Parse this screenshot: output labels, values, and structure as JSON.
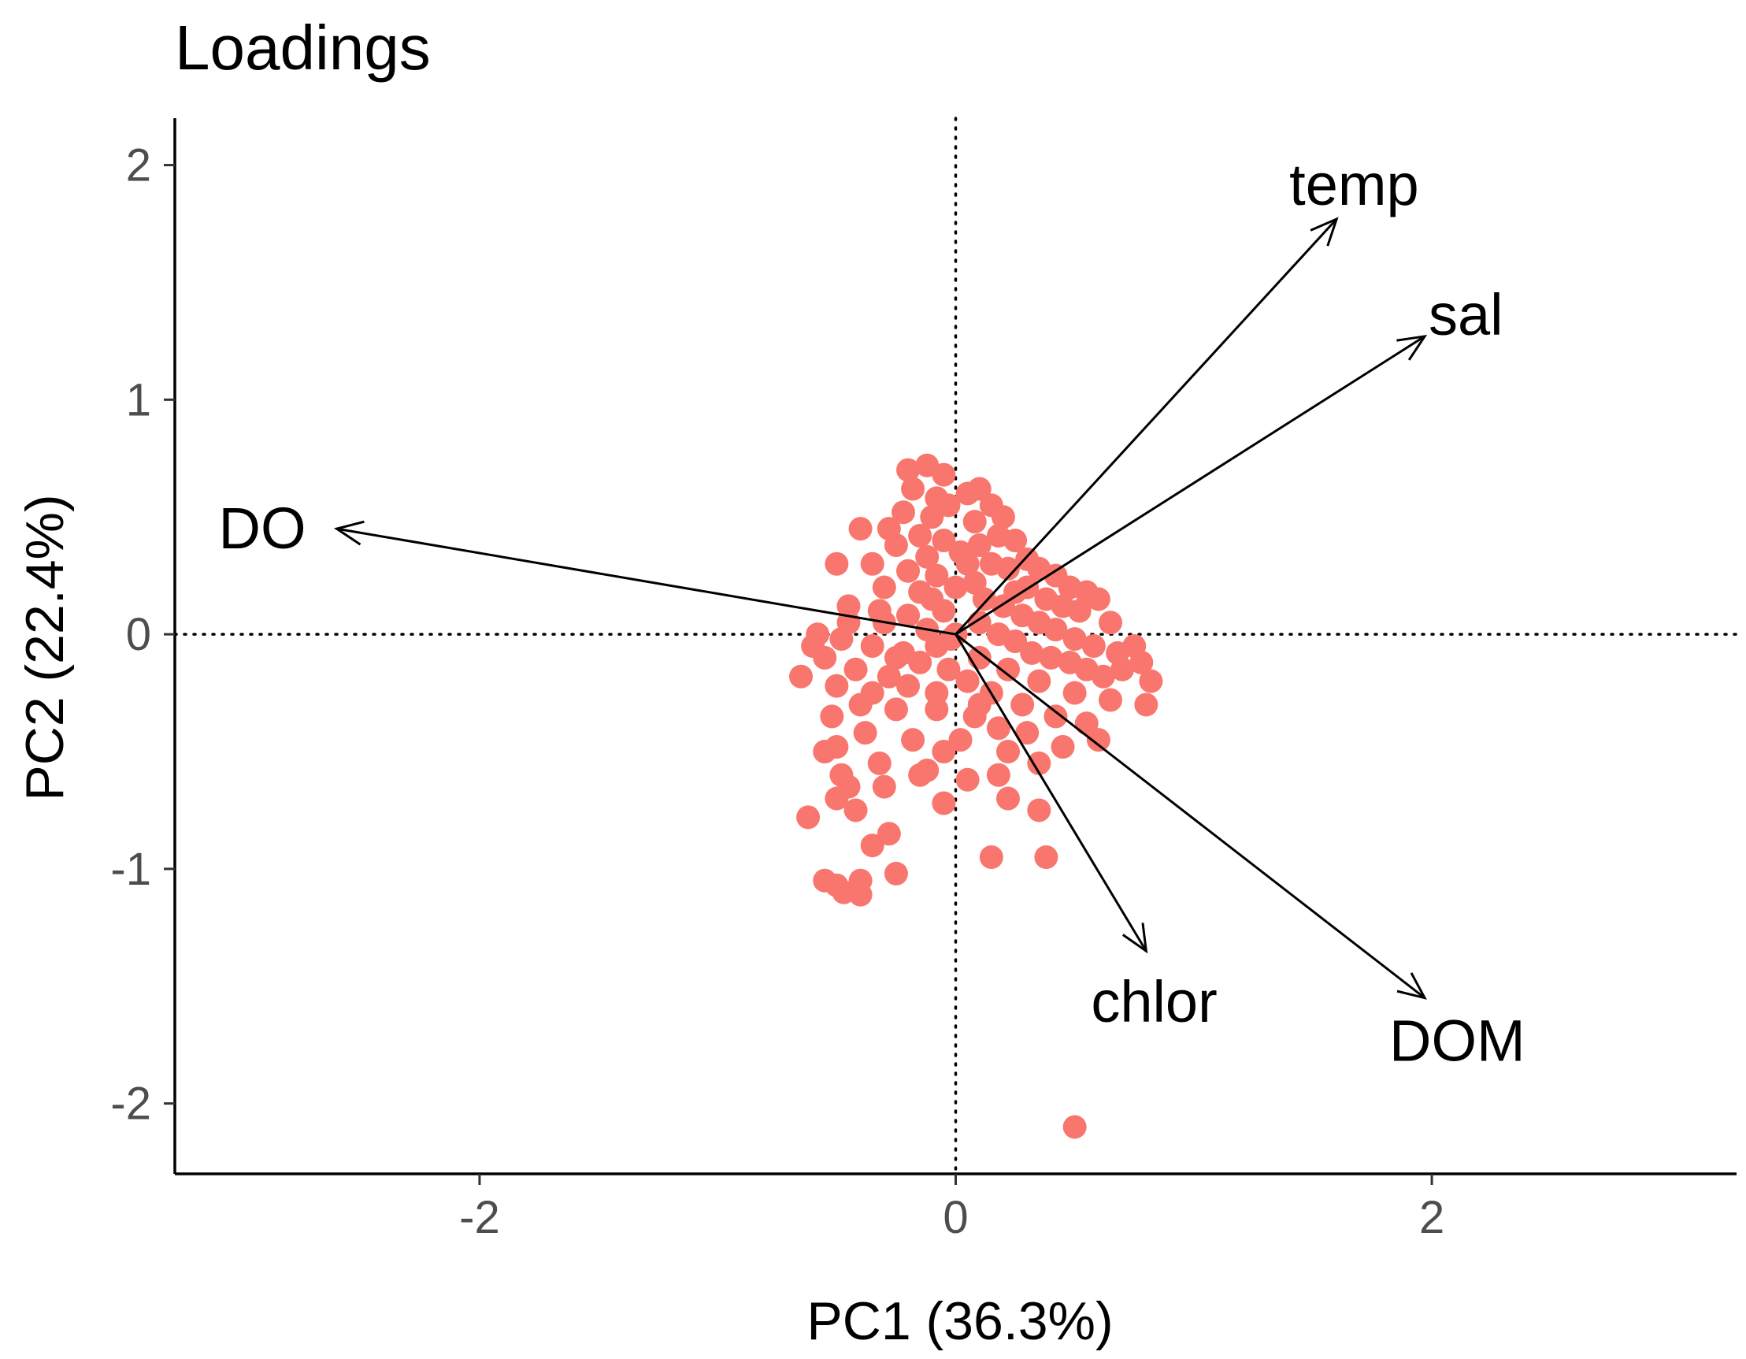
{
  "chart_data": {
    "type": "scatter",
    "title": "Loadings",
    "xlabel": "PC1 (36.3%)",
    "ylabel": "PC2 (22.4%)",
    "xlim": [
      -3.28,
      3.28
    ],
    "ylim": [
      -2.3,
      2.2
    ],
    "x_ticks": [
      -2,
      0,
      2
    ],
    "y_ticks": [
      -2,
      -1,
      0,
      1,
      2
    ],
    "reference_lines": {
      "x": 0,
      "y": 0,
      "style": "dotted"
    },
    "point_color": "#F8766D",
    "arrow_color": "#000000",
    "loadings": [
      {
        "name": "DO",
        "x": -2.6,
        "y": 0.45
      },
      {
        "name": "temp",
        "x": 1.6,
        "y": 1.77
      },
      {
        "name": "sal",
        "x": 1.97,
        "y": 1.27
      },
      {
        "name": "chlor",
        "x": 0.8,
        "y": -1.35
      },
      {
        "name": "DOM",
        "x": 1.97,
        "y": -1.55
      }
    ],
    "points": [
      [
        -0.2,
        0.7
      ],
      [
        -0.12,
        0.72
      ],
      [
        -0.05,
        0.68
      ],
      [
        -0.18,
        0.62
      ],
      [
        -0.08,
        0.58
      ],
      [
        -0.22,
        0.52
      ],
      [
        -0.1,
        0.5
      ],
      [
        -0.03,
        0.55
      ],
      [
        -0.28,
        0.45
      ],
      [
        -0.15,
        0.42
      ],
      [
        -0.05,
        0.4
      ],
      [
        -0.25,
        0.38
      ],
      [
        -0.12,
        0.33
      ],
      [
        0.02,
        0.35
      ],
      [
        -0.35,
        0.3
      ],
      [
        -0.2,
        0.27
      ],
      [
        -0.08,
        0.25
      ],
      [
        -0.3,
        0.2
      ],
      [
        -0.15,
        0.18
      ],
      [
        0.0,
        0.2
      ],
      [
        -0.45,
        0.12
      ],
      [
        -0.32,
        0.1
      ],
      [
        -0.2,
        0.08
      ],
      [
        -0.05,
        0.1
      ],
      [
        -0.5,
        0.3
      ],
      [
        -0.4,
        0.45
      ],
      [
        -0.3,
        0.05
      ],
      [
        -0.12,
        0.02
      ],
      [
        -0.48,
        -0.02
      ],
      [
        -0.35,
        -0.05
      ],
      [
        -0.22,
        -0.08
      ],
      [
        -0.08,
        -0.05
      ],
      [
        -0.55,
        -0.1
      ],
      [
        -0.42,
        -0.15
      ],
      [
        -0.28,
        -0.18
      ],
      [
        -0.15,
        -0.12
      ],
      [
        -0.03,
        -0.15
      ],
      [
        -0.65,
        -0.18
      ],
      [
        -0.5,
        -0.22
      ],
      [
        -0.35,
        -0.25
      ],
      [
        -0.2,
        -0.22
      ],
      [
        -0.08,
        -0.25
      ],
      [
        -0.45,
        0.05
      ],
      [
        -0.25,
        -0.1
      ],
      [
        0.05,
        0.6
      ],
      [
        0.1,
        0.62
      ],
      [
        0.15,
        0.55
      ],
      [
        0.2,
        0.5
      ],
      [
        0.08,
        0.48
      ],
      [
        0.18,
        0.42
      ],
      [
        0.25,
        0.4
      ],
      [
        0.1,
        0.38
      ],
      [
        0.05,
        0.3
      ],
      [
        0.15,
        0.3
      ],
      [
        0.22,
        0.28
      ],
      [
        0.3,
        0.32
      ],
      [
        0.35,
        0.28
      ],
      [
        0.42,
        0.25
      ],
      [
        0.48,
        0.2
      ],
      [
        0.55,
        0.18
      ],
      [
        0.3,
        0.2
      ],
      [
        0.38,
        0.15
      ],
      [
        0.45,
        0.12
      ],
      [
        0.52,
        0.1
      ],
      [
        0.6,
        0.15
      ],
      [
        0.65,
        0.05
      ],
      [
        0.12,
        0.15
      ],
      [
        0.2,
        0.12
      ],
      [
        0.28,
        0.08
      ],
      [
        0.35,
        0.05
      ],
      [
        0.42,
        0.02
      ],
      [
        0.5,
        -0.02
      ],
      [
        0.58,
        -0.05
      ],
      [
        0.68,
        -0.08
      ],
      [
        0.75,
        -0.05
      ],
      [
        0.1,
        0.05
      ],
      [
        0.18,
        0.0
      ],
      [
        0.25,
        -0.03
      ],
      [
        0.32,
        -0.08
      ],
      [
        0.4,
        -0.1
      ],
      [
        0.48,
        -0.12
      ],
      [
        0.55,
        -0.15
      ],
      [
        0.62,
        -0.18
      ],
      [
        0.7,
        -0.15
      ],
      [
        0.78,
        -0.12
      ],
      [
        0.82,
        -0.2
      ],
      [
        0.8,
        -0.3
      ],
      [
        0.65,
        -0.28
      ],
      [
        0.5,
        -0.25
      ],
      [
        0.35,
        -0.2
      ],
      [
        0.22,
        -0.15
      ],
      [
        0.1,
        -0.1
      ],
      [
        0.05,
        -0.2
      ],
      [
        0.15,
        -0.25
      ],
      [
        0.28,
        -0.3
      ],
      [
        0.42,
        -0.35
      ],
      [
        0.55,
        -0.38
      ],
      [
        0.6,
        -0.45
      ],
      [
        0.45,
        -0.48
      ],
      [
        0.3,
        -0.42
      ],
      [
        0.18,
        -0.4
      ],
      [
        0.08,
        -0.35
      ],
      [
        0.22,
        -0.5
      ],
      [
        0.35,
        -0.55
      ],
      [
        -0.52,
        -0.35
      ],
      [
        -0.5,
        -0.48
      ],
      [
        -0.48,
        -0.6
      ],
      [
        -0.38,
        -0.42
      ],
      [
        -0.32,
        -0.55
      ],
      [
        -0.3,
        -0.65
      ],
      [
        -0.18,
        -0.45
      ],
      [
        -0.12,
        -0.58
      ],
      [
        -0.05,
        -0.5
      ],
      [
        0.02,
        -0.45
      ],
      [
        -0.55,
        -0.5
      ],
      [
        -0.5,
        -0.7
      ],
      [
        -0.45,
        -0.65
      ],
      [
        -0.42,
        -0.75
      ],
      [
        -0.62,
        -0.78
      ],
      [
        -0.35,
        -0.9
      ],
      [
        -0.28,
        -0.85
      ],
      [
        -0.25,
        -1.02
      ],
      [
        -0.55,
        -1.05
      ],
      [
        -0.5,
        -1.07
      ],
      [
        -0.47,
        -1.1
      ],
      [
        -0.4,
        -1.05
      ],
      [
        -0.4,
        -1.11
      ],
      [
        -0.15,
        -0.6
      ],
      [
        -0.05,
        -0.72
      ],
      [
        0.05,
        -0.62
      ],
      [
        0.18,
        -0.6
      ],
      [
        0.35,
        -0.75
      ],
      [
        0.22,
        -0.7
      ],
      [
        0.15,
        -0.95
      ],
      [
        0.38,
        -0.95
      ],
      [
        0.1,
        -0.3
      ],
      [
        -0.08,
        -0.32
      ],
      [
        -0.25,
        -0.32
      ],
      [
        -0.4,
        -0.3
      ],
      [
        -0.6,
        -0.05
      ],
      [
        -0.58,
        0.0
      ],
      [
        0.0,
        0.0
      ],
      [
        -0.1,
        0.15
      ],
      [
        0.08,
        0.22
      ],
      [
        0.25,
        0.18
      ],
      [
        -0.02,
        -0.02
      ],
      [
        0.5,
        -2.1
      ]
    ]
  }
}
